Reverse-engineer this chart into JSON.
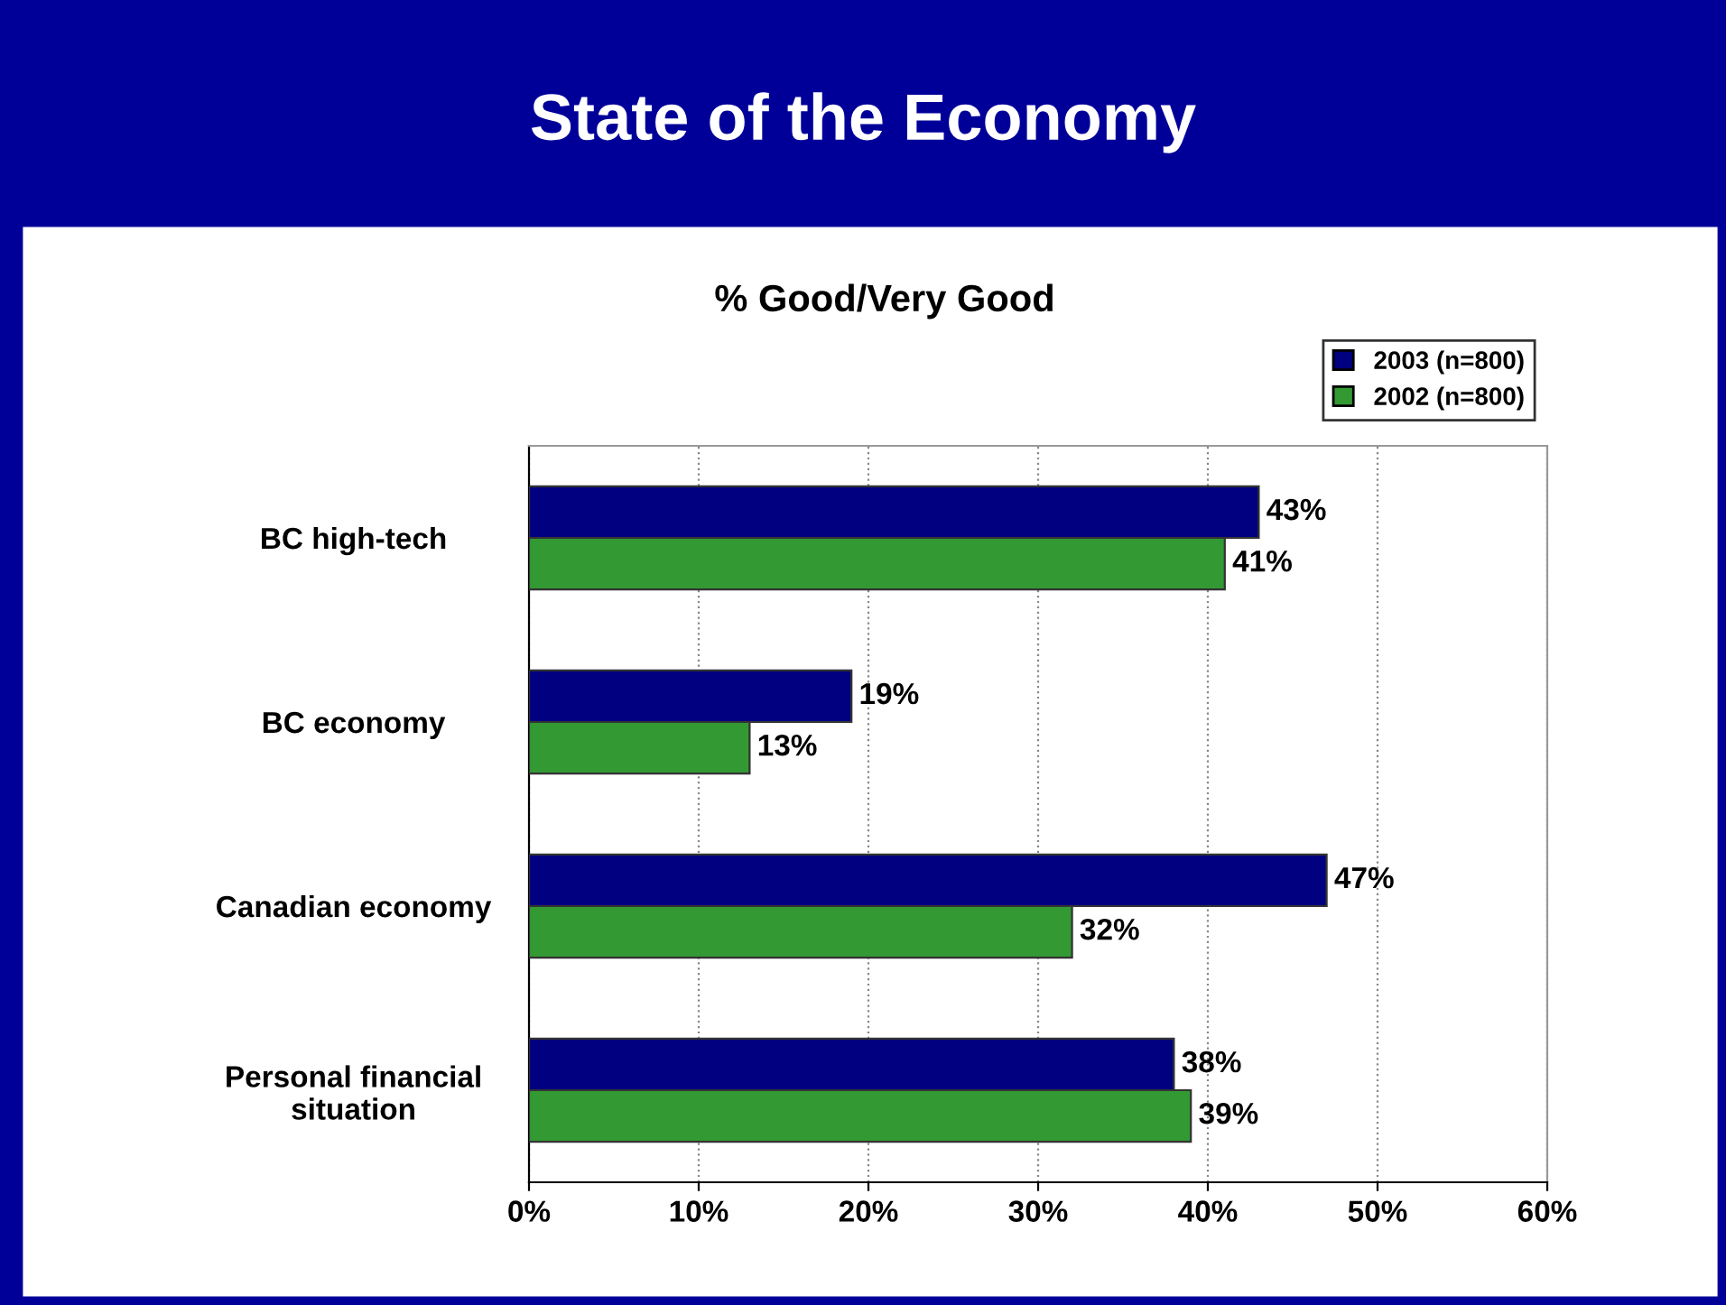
{
  "chart_data": {
    "type": "bar",
    "orientation": "horizontal",
    "title": "State of the Economy",
    "subtitle": "% Good/Very Good",
    "categories": [
      "BC high-tech",
      "BC economy",
      "Canadian economy",
      "Personal financial\nsituation"
    ],
    "series": [
      {
        "name": "2003 (n=800)",
        "color": "#000080",
        "values": [
          43,
          19,
          47,
          38
        ],
        "value_labels": [
          "43%",
          "19%",
          "47%",
          "38%"
        ]
      },
      {
        "name": "2002 (n=800)",
        "color": "#339933",
        "values": [
          41,
          13,
          32,
          39
        ],
        "value_labels": [
          "41%",
          "13%",
          "32%",
          "39%"
        ]
      }
    ],
    "xlim": [
      0,
      60
    ],
    "xticks": [
      {
        "value": 0,
        "label": "0%"
      },
      {
        "value": 10,
        "label": "10%"
      },
      {
        "value": 20,
        "label": "20%"
      },
      {
        "value": 30,
        "label": "30%"
      },
      {
        "value": 40,
        "label": "40%"
      },
      {
        "value": 50,
        "label": "50%"
      },
      {
        "value": 60,
        "label": "60%"
      }
    ],
    "grid": "x",
    "legend": "top right"
  }
}
